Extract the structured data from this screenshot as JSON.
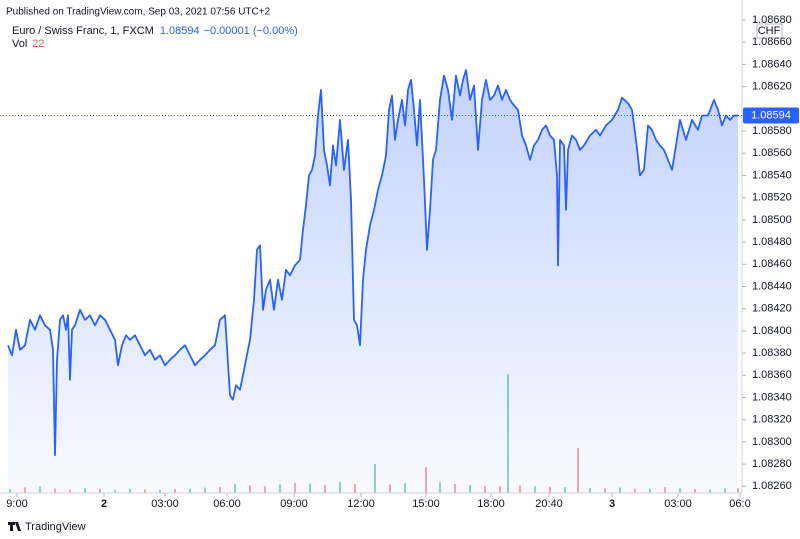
{
  "header": {
    "published": "Published on TradingView.com, Sep 03, 2021 07:56 UTC+2",
    "symbol": "Euro / Swiss Franc, 1, FXCM",
    "price": 1.08594,
    "change": "−0.00001 (−0.00%)",
    "volume_label": "Vol",
    "currency": "CHF"
  },
  "footer": {
    "brand": "TradingView"
  },
  "chart_data": {
    "type": "line",
    "x": [
      8,
      12,
      16,
      20,
      25,
      30,
      35,
      40,
      45,
      50,
      53,
      55,
      57,
      60,
      63,
      66,
      68,
      70,
      72,
      75,
      80,
      85,
      90,
      95,
      100,
      105,
      110,
      115,
      118,
      122,
      126,
      130,
      135,
      140,
      145,
      150,
      155,
      160,
      165,
      170,
      175,
      180,
      185,
      190,
      195,
      200,
      205,
      210,
      215,
      220,
      225,
      230,
      233,
      236,
      240,
      243,
      246,
      250,
      254,
      257,
      260,
      263,
      266,
      270,
      274,
      278,
      282,
      286,
      290,
      295,
      300,
      303,
      306,
      309,
      312,
      315,
      318,
      321,
      324,
      327,
      330,
      333,
      336,
      340,
      344,
      348,
      351,
      354,
      357,
      360,
      363,
      366,
      370,
      374,
      378,
      382,
      386,
      389,
      392,
      395,
      398,
      402,
      405,
      408,
      411,
      414,
      417,
      420,
      424,
      427,
      430,
      433,
      436,
      440,
      444,
      448,
      452,
      456,
      460,
      463,
      466,
      470,
      474,
      478,
      482,
      486,
      490,
      494,
      498,
      502,
      506,
      510,
      514,
      518,
      522,
      526,
      530,
      534,
      538,
      542,
      546,
      550,
      554,
      557,
      558,
      560,
      564,
      566,
      568,
      572,
      576,
      580,
      584,
      590,
      596,
      600,
      606,
      612,
      618,
      622,
      628,
      632,
      636,
      640,
      644,
      648,
      652,
      656,
      660,
      664,
      668,
      672,
      676,
      680,
      686,
      692,
      698,
      702,
      708,
      714,
      718,
      722,
      726,
      730,
      734,
      738
    ],
    "series": [
      {
        "color": "#2962ff",
        "values": [
          1.08387,
          1.08378,
          1.08401,
          1.08383,
          1.08387,
          1.0841,
          1.08401,
          1.08414,
          1.08405,
          1.08401,
          1.08383,
          1.08288,
          1.08374,
          1.0841,
          1.08414,
          1.08401,
          1.08414,
          1.08356,
          1.08401,
          1.08405,
          1.08419,
          1.0841,
          1.08414,
          1.08405,
          1.08414,
          1.0841,
          1.08401,
          1.08392,
          1.08369,
          1.08387,
          1.08396,
          1.08392,
          1.08396,
          1.08387,
          1.08378,
          1.08383,
          1.08374,
          1.08378,
          1.08369,
          1.08374,
          1.08378,
          1.08383,
          1.08387,
          1.08378,
          1.08369,
          1.08374,
          1.08378,
          1.08383,
          1.08387,
          1.0841,
          1.08414,
          1.08342,
          1.08338,
          1.08351,
          1.08347,
          1.0836,
          1.08374,
          1.08392,
          1.08428,
          1.08473,
          1.08477,
          1.08419,
          1.08437,
          1.08446,
          1.08419,
          1.08446,
          1.08428,
          1.08455,
          1.0845,
          1.08459,
          1.08464,
          1.08491,
          1.08513,
          1.0854,
          1.08545,
          1.08558,
          1.08594,
          1.08617,
          1.08563,
          1.08549,
          1.08531,
          1.08567,
          1.08549,
          1.0859,
          1.08545,
          1.08572,
          1.08518,
          1.0841,
          1.08405,
          1.08387,
          1.08446,
          1.08473,
          1.08495,
          1.08509,
          1.08527,
          1.0854,
          1.08558,
          1.08599,
          1.08612,
          1.08572,
          1.0859,
          1.08608,
          1.08585,
          1.08617,
          1.08626,
          1.08599,
          1.08567,
          1.08608,
          1.08536,
          1.08473,
          1.08509,
          1.08554,
          1.08563,
          1.08608,
          1.0863,
          1.08617,
          1.0859,
          1.0863,
          1.08612,
          1.08626,
          1.08635,
          1.08608,
          1.08621,
          1.08563,
          1.08608,
          1.08626,
          1.08608,
          1.08612,
          1.08621,
          1.08608,
          1.08617,
          1.08608,
          1.08603,
          1.08599,
          1.08576,
          1.08567,
          1.08554,
          1.08567,
          1.08572,
          1.08581,
          1.08585,
          1.08576,
          1.08572,
          1.0854,
          1.08459,
          1.08572,
          1.08567,
          1.08509,
          1.08563,
          1.08576,
          1.08572,
          1.08563,
          1.08567,
          1.08576,
          1.08581,
          1.08576,
          1.08585,
          1.0859,
          1.08599,
          1.0861,
          1.08605,
          1.08599,
          1.08572,
          1.0854,
          1.08545,
          1.08585,
          1.08581,
          1.08572,
          1.08567,
          1.08563,
          1.08554,
          1.08545,
          1.08567,
          1.0859,
          1.08572,
          1.0859,
          1.08581,
          1.08594,
          1.08594,
          1.08608,
          1.08599,
          1.08585,
          1.08594,
          1.0859,
          1.08594,
          1.08594
        ]
      }
    ],
    "last_price": 1.08594,
    "volume": {
      "x": [
        10,
        25,
        40,
        55,
        70,
        85,
        100,
        115,
        130,
        145,
        160,
        175,
        190,
        205,
        220,
        235,
        250,
        265,
        280,
        295,
        310,
        325,
        340,
        355,
        375,
        390,
        405,
        426,
        440,
        455,
        470,
        485,
        500,
        508,
        520,
        535,
        550,
        565,
        578,
        590,
        605,
        620,
        635,
        650,
        665,
        680,
        695,
        710,
        725,
        738
      ],
      "values": [
        18,
        25,
        30,
        20,
        15,
        22,
        18,
        12,
        20,
        16,
        14,
        18,
        20,
        24,
        28,
        40,
        35,
        30,
        38,
        45,
        42,
        36,
        50,
        40,
        130,
        38,
        44,
        115,
        48,
        40,
        36,
        32,
        30,
        530,
        34,
        30,
        28,
        26,
        200,
        22,
        20,
        24,
        18,
        20,
        26,
        22,
        18,
        16,
        20,
        22
      ],
      "colors": [
        "#26a69a",
        "#ef5350",
        "#26a69a",
        "#ef5350",
        "#ef5350",
        "#26a69a",
        "#ef5350",
        "#26a69a",
        "#26a69a",
        "#ef5350",
        "#26a69a",
        "#ef5350",
        "#26a69a",
        "#26a69a",
        "#ef5350",
        "#26a69a",
        "#ef5350",
        "#ef5350",
        "#26a69a",
        "#ef5350",
        "#26a69a",
        "#ef5350",
        "#26a69a",
        "#ef5350",
        "#26a69a",
        "#ef5350",
        "#26a69a",
        "#ef5350",
        "#26a69a",
        "#ef5350",
        "#26a69a",
        "#ef5350",
        "#ef5350",
        "#26a69a",
        "#ef5350",
        "#26a69a",
        "#ef5350",
        "#26a69a",
        "#ef5350",
        "#26a69a",
        "#ef5350",
        "#26a69a",
        "#ef5350",
        "#26a69a",
        "#ef5350",
        "#26a69a",
        "#ef5350",
        "#26a69a",
        "#26a69a",
        "#ef5350"
      ]
    },
    "xlim": [
      0,
      742
    ],
    "xticks": [
      {
        "value": 17,
        "label": "9:00"
      },
      {
        "value": 104,
        "label": "2"
      },
      {
        "value": 165,
        "label": "03:00"
      },
      {
        "value": 227,
        "label": "06:00"
      },
      {
        "value": 294,
        "label": "09:00"
      },
      {
        "value": 361,
        "label": "12:00"
      },
      {
        "value": 426,
        "label": "15:00"
      },
      {
        "value": 491,
        "label": "18:00"
      },
      {
        "value": 549,
        "label": "20:40"
      },
      {
        "value": 612,
        "label": "3"
      },
      {
        "value": 678,
        "label": "03:00"
      },
      {
        "value": 740,
        "label": "06:0"
      }
    ],
    "ylim": [
      1.08254,
      1.08698
    ],
    "yticks": [
      {
        "value": 1.0826,
        "label": "1.08260"
      },
      {
        "value": 1.0828,
        "label": "1.08280"
      },
      {
        "value": 1.083,
        "label": "1.08300"
      },
      {
        "value": 1.0832,
        "label": "1.08320"
      },
      {
        "value": 1.0834,
        "label": "1.08340"
      },
      {
        "value": 1.0836,
        "label": "1.08360"
      },
      {
        "value": 1.0838,
        "label": "1.08380"
      },
      {
        "value": 1.084,
        "label": "1.08400"
      },
      {
        "value": 1.0842,
        "label": "1.08420"
      },
      {
        "value": 1.0844,
        "label": "1.08440"
      },
      {
        "value": 1.0846,
        "label": "1.08460"
      },
      {
        "value": 1.0848,
        "label": "1.08480"
      },
      {
        "value": 1.085,
        "label": "1.08500"
      },
      {
        "value": 1.0852,
        "label": "1.08520"
      },
      {
        "value": 1.0854,
        "label": "1.08540"
      },
      {
        "value": 1.0856,
        "label": "1.08560"
      },
      {
        "value": 1.0858,
        "label": "1.08580"
      },
      {
        "value": 1.0862,
        "label": "1.08620"
      },
      {
        "value": 1.0864,
        "label": "1.08640"
      },
      {
        "value": 1.0866,
        "label": "1.08660"
      },
      {
        "value": 1.0868,
        "label": "1.08680"
      }
    ],
    "y2lim": [
      0,
      2200
    ],
    "grid": false
  }
}
